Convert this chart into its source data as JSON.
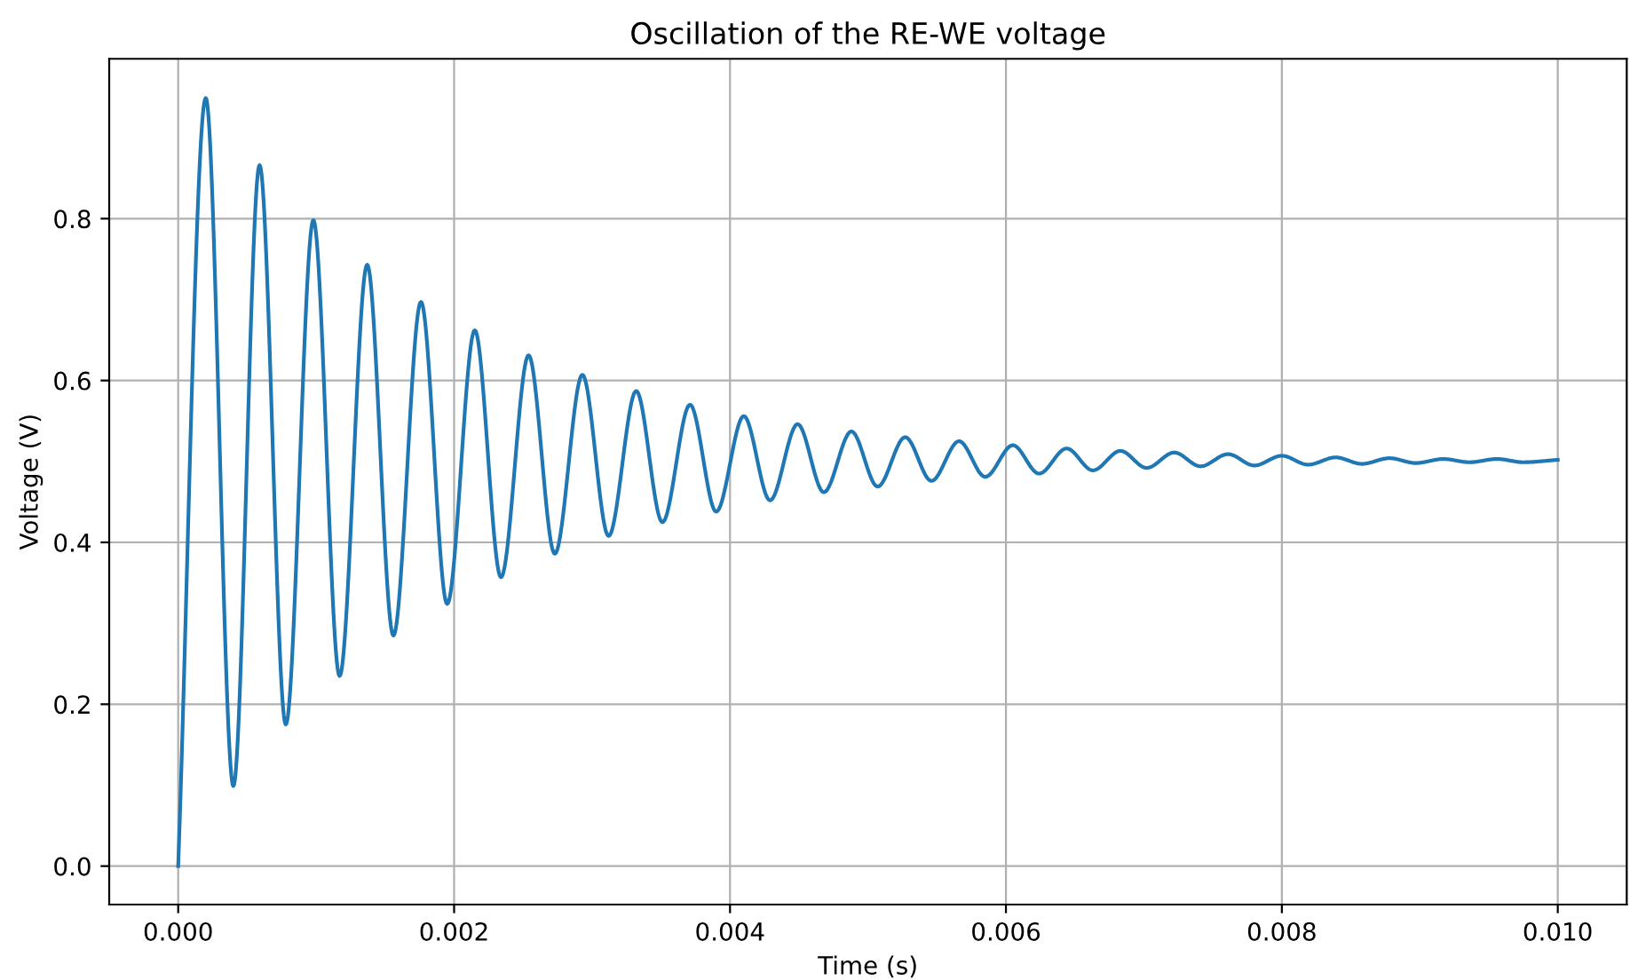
{
  "chart_data": {
    "type": "line",
    "title": "Oscillation of the RE-WE voltage",
    "xlabel": "Time (s)",
    "ylabel": "Voltage (V)",
    "series": [
      {
        "color": "#1f77b4",
        "x": [
          0.0,
          0.0002,
          0.0004,
          0.00059,
          0.00078,
          0.00098,
          0.00117,
          0.00137,
          0.00156,
          0.00176,
          0.00195,
          0.00215,
          0.00234,
          0.00254,
          0.00273,
          0.00293,
          0.00312,
          0.00332,
          0.00351,
          0.00371,
          0.0039,
          0.0041,
          0.00429,
          0.00449,
          0.00468,
          0.00488,
          0.00507,
          0.00527,
          0.00546,
          0.00566,
          0.00585,
          0.00605,
          0.00624,
          0.00644,
          0.00663,
          0.00683,
          0.00702,
          0.00722,
          0.00741,
          0.00761,
          0.0078,
          0.008,
          0.00819,
          0.00839,
          0.00858,
          0.00878,
          0.00897,
          0.00917,
          0.00936,
          0.00956,
          0.00975,
          0.01
        ],
        "values": [
          0.0,
          0.949,
          0.099,
          0.866,
          0.175,
          0.798,
          0.235,
          0.743,
          0.285,
          0.697,
          0.324,
          0.662,
          0.357,
          0.631,
          0.386,
          0.607,
          0.408,
          0.587,
          0.425,
          0.57,
          0.438,
          0.556,
          0.452,
          0.546,
          0.462,
          0.537,
          0.469,
          0.53,
          0.476,
          0.525,
          0.481,
          0.52,
          0.485,
          0.516,
          0.489,
          0.513,
          0.492,
          0.511,
          0.494,
          0.509,
          0.495,
          0.507,
          0.496,
          0.505,
          0.497,
          0.504,
          0.498,
          0.503,
          0.499,
          0.503,
          0.499,
          0.502
        ]
      }
    ],
    "xlim": [
      -0.0005,
      0.0105
    ],
    "ylim": [
      -0.0475,
      0.9975
    ],
    "xticks": [
      {
        "value": 0,
        "label": "0.000"
      },
      {
        "value": 0.002,
        "label": "0.002"
      },
      {
        "value": 0.004,
        "label": "0.004"
      },
      {
        "value": 0.006,
        "label": "0.006"
      },
      {
        "value": 0.008,
        "label": "0.008"
      },
      {
        "value": 0.01,
        "label": "0.010"
      }
    ],
    "yticks": [
      {
        "value": 0,
        "label": "0.0"
      },
      {
        "value": 0.2,
        "label": "0.2"
      },
      {
        "value": 0.4,
        "label": "0.4"
      },
      {
        "value": 0.6,
        "label": "0.6"
      },
      {
        "value": 0.8,
        "label": "0.8"
      }
    ],
    "grid": true,
    "legend": false
  }
}
